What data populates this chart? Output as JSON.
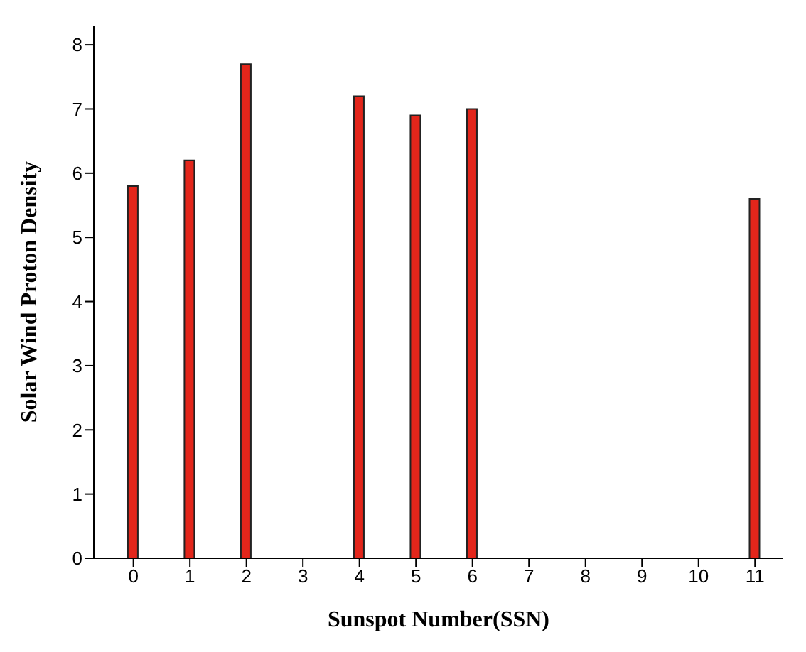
{
  "chart_data": {
    "type": "bar",
    "xlabel": "Sunspot Number(SSN)",
    "ylabel": "Solar Wind Proton Density",
    "x": [
      0,
      1,
      2,
      4,
      5,
      6,
      11
    ],
    "values": [
      5.8,
      6.2,
      7.7,
      7.2,
      6.9,
      7.0,
      5.6
    ],
    "color": "#e3261b",
    "xlim": [
      -0.7,
      11.5
    ],
    "xticks": [
      0,
      1,
      2,
      3,
      4,
      5,
      6,
      7,
      8,
      9,
      10,
      11
    ],
    "ylim": [
      0,
      8.3
    ],
    "yticks": [
      0,
      1,
      2,
      3,
      4,
      5,
      6,
      7,
      8
    ],
    "grid": false,
    "legend": false
  }
}
